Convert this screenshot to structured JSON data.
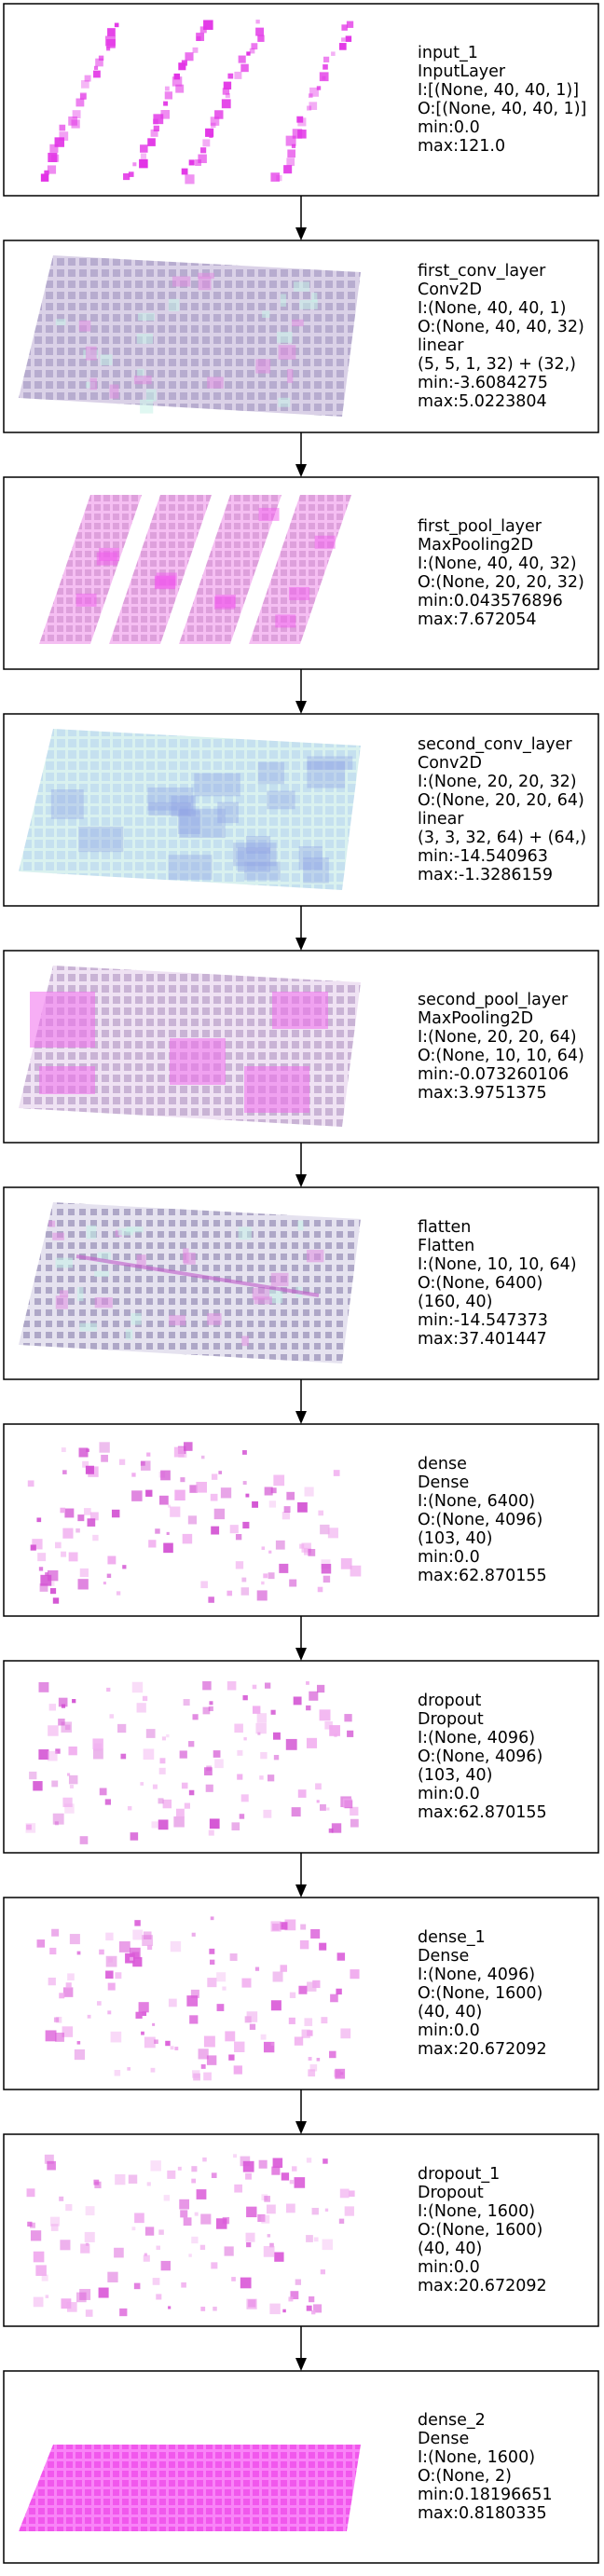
{
  "layers": [
    {
      "id": "input_1",
      "lines": [
        "input_1",
        "InputLayer",
        "I:[(None, 40, 40, 1)]",
        "O:[(None, 40, 40, 1)]",
        "min:0.0",
        "max:121.0"
      ],
      "viz": "stripes",
      "color": "#e233e6"
    },
    {
      "id": "first_conv_layer",
      "lines": [
        "first_conv_layer",
        "Conv2D",
        "I:(None, 40, 40, 1)",
        "O:(None, 40, 40, 32)",
        "linear",
        "(5, 5, 1, 32) + (32,)",
        "min:-3.6084275",
        "max:5.0223804"
      ],
      "viz": "grid-mixed",
      "color": "#c8a8dc"
    },
    {
      "id": "first_pool_layer",
      "lines": [
        "first_pool_layer",
        "MaxPooling2D",
        "I:(None, 40, 40, 32)",
        "O:(None, 20, 20, 32)",
        "min:0.043576896",
        "max:7.672054"
      ],
      "viz": "stripes-grid",
      "color": "#f070ea"
    },
    {
      "id": "second_conv_layer",
      "lines": [
        "second_conv_layer",
        "Conv2D",
        "I:(None, 20, 20, 32)",
        "O:(None, 20, 20, 64)",
        "linear",
        "(3, 3, 32, 64) + (64,)",
        "min:-14.540963",
        "max:-1.3286159"
      ],
      "viz": "grid-blue",
      "color": "#9fb4f0"
    },
    {
      "id": "second_pool_layer",
      "lines": [
        "second_pool_layer",
        "MaxPooling2D",
        "I:(None, 20, 20, 64)",
        "O:(None, 10, 10, 64)",
        "min:-0.073260106",
        "max:3.9751375"
      ],
      "viz": "grid-pink",
      "color": "#ec64e6"
    },
    {
      "id": "flatten",
      "lines": [
        "flatten",
        "Flatten",
        "I:(None, 10, 10, 64)",
        "O:(None, 6400)",
        "(160, 40)",
        "min:-14.547373",
        "max:37.401447"
      ],
      "viz": "grid-mixed2",
      "color": "#b89ad4"
    },
    {
      "id": "dense",
      "lines": [
        "dense",
        "Dense",
        "I:(None, 6400)",
        "O:(None, 4096)",
        "(103, 40)",
        "min:0.0",
        "max:62.870155"
      ],
      "viz": "scatter",
      "color": "#d24fd2"
    },
    {
      "id": "dropout",
      "lines": [
        "dropout",
        "Dropout",
        "I:(None, 4096)",
        "O:(None, 4096)",
        "(103, 40)",
        "min:0.0",
        "max:62.870155"
      ],
      "viz": "scatter",
      "color": "#d24fd2"
    },
    {
      "id": "dense_1",
      "lines": [
        "dense_1",
        "Dense",
        "I:(None, 4096)",
        "O:(None, 1600)",
        "(40, 40)",
        "min:0.0",
        "max:20.672092"
      ],
      "viz": "scatter",
      "color": "#da5ad8"
    },
    {
      "id": "dropout_1",
      "lines": [
        "dropout_1",
        "Dropout",
        "I:(None, 1600)",
        "O:(None, 1600)",
        "(40, 40)",
        "min:0.0",
        "max:20.672092"
      ],
      "viz": "scatter",
      "color": "#da5ad8"
    },
    {
      "id": "dense_2",
      "lines": [
        "dense_2",
        "Dense",
        "I:(None, 1600)",
        "O:(None, 2)",
        "min:0.18196651",
        "max:0.8180335"
      ],
      "viz": "solid",
      "color": "#f86cf8"
    }
  ]
}
